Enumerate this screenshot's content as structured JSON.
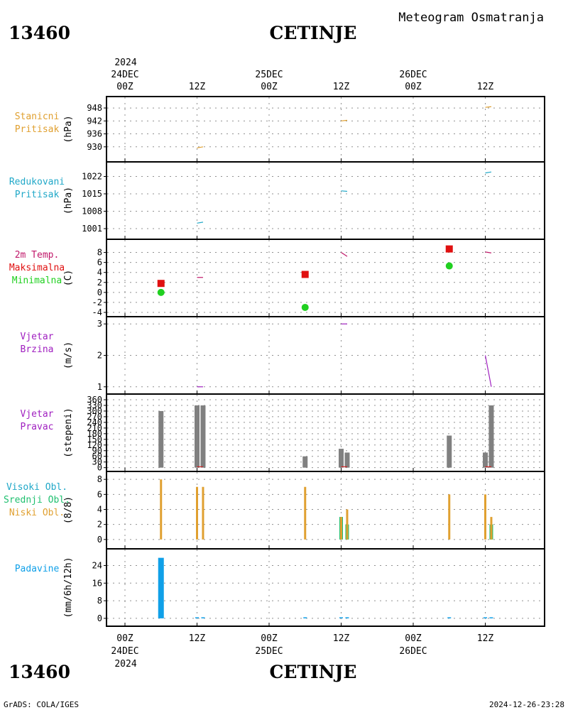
{
  "header": {
    "station_id": "13460",
    "station_name": "CETINJE",
    "title": "Meteogram Osmatranja"
  },
  "footer": {
    "credit": "GrADS: COLA/IGES",
    "timestamp": "2024-12-26-23:28"
  },
  "axis_top": {
    "year": "2024",
    "ticks": [
      {
        "t": 0,
        "lines": [
          "24DEC",
          "00Z"
        ]
      },
      {
        "t": 12,
        "lines": [
          "",
          "12Z"
        ]
      },
      {
        "t": 24,
        "lines": [
          "25DEC",
          "00Z"
        ]
      },
      {
        "t": 36,
        "lines": [
          "",
          "12Z"
        ]
      },
      {
        "t": 48,
        "lines": [
          "26DEC",
          "00Z"
        ]
      },
      {
        "t": 60,
        "lines": [
          "",
          "12Z"
        ]
      }
    ]
  },
  "axis_bottom": {
    "year": "2024",
    "ticks": [
      {
        "t": 0,
        "lines": [
          "00Z",
          "24DEC"
        ]
      },
      {
        "t": 12,
        "lines": [
          "12Z",
          ""
        ]
      },
      {
        "t": 24,
        "lines": [
          "00Z",
          "25DEC"
        ]
      },
      {
        "t": 36,
        "lines": [
          "12Z",
          ""
        ]
      },
      {
        "t": 48,
        "lines": [
          "00Z",
          "26DEC"
        ]
      },
      {
        "t": 60,
        "lines": [
          "12Z",
          ""
        ]
      }
    ]
  },
  "colors": {
    "station_pressure": "#e0a030",
    "reduced_pressure": "#20a8c8",
    "temp": "#c0186a",
    "temp_max": "#e01010",
    "temp_min": "#20d020",
    "wind": "#a020c0",
    "wind_dir_bar": "#808080",
    "high_cloud": "#20a8c8",
    "mid_cloud": "#20c070",
    "low_cloud": "#e0a030",
    "precip": "#10a0e8",
    "grid": "#909090",
    "red_line": "#e01010"
  },
  "chart_data": [
    {
      "id": "station_pressure",
      "type": "line",
      "labels": [
        "Stanicni",
        "Pritisak"
      ],
      "unit": "(hPa)",
      "yticks": [
        "930",
        "936",
        "942",
        "948"
      ],
      "ylim": [
        925,
        950
      ],
      "color": "station_pressure",
      "segments": [
        {
          "x": [
            12,
            13
          ],
          "y": [
            929.5,
            930
          ]
        },
        {
          "x": [
            36,
            37
          ],
          "y": [
            942,
            942.3
          ]
        },
        {
          "x": [
            60,
            61
          ],
          "y": [
            948.3,
            948.6
          ]
        }
      ]
    },
    {
      "id": "reduced_pressure",
      "type": "line",
      "labels": [
        "Redukovani",
        "Pritisak"
      ],
      "unit": "(hPa)",
      "yticks": [
        "1001",
        "1008",
        "1015",
        "1022"
      ],
      "ylim": [
        999,
        1025
      ],
      "color": "reduced_pressure",
      "segments": [
        {
          "x": [
            12,
            13
          ],
          "y": [
            1003.2,
            1003.6
          ]
        },
        {
          "x": [
            36,
            37
          ],
          "y": [
            1016.2,
            1016
          ]
        },
        {
          "x": [
            60,
            61
          ],
          "y": [
            1023.4,
            1023.8
          ]
        }
      ]
    },
    {
      "id": "temperature",
      "type": "line+scatter",
      "labels": [
        "2m Temp.",
        "Maksimalna",
        "Minimalna"
      ],
      "label_colors": [
        "temp",
        "temp_max",
        "temp_min"
      ],
      "unit": "(C)",
      "yticks": [
        "-4",
        "-2",
        "0",
        "2",
        "4",
        "6",
        "8"
      ],
      "ylim": [
        -4,
        9.5
      ],
      "color": "temp",
      "segments": [
        {
          "x": [
            12,
            13
          ],
          "y": [
            3,
            3
          ]
        },
        {
          "x": [
            36,
            37
          ],
          "y": [
            8,
            7.2
          ]
        },
        {
          "x": [
            60,
            61
          ],
          "y": [
            8.1,
            7.9
          ]
        }
      ],
      "max": {
        "x": [
          6,
          30,
          54
        ],
        "y": [
          1.8,
          3.6,
          8.7
        ]
      },
      "min": {
        "x": [
          6,
          30,
          54
        ],
        "y": [
          0,
          -3,
          5.3
        ]
      }
    },
    {
      "id": "wind_speed",
      "type": "line",
      "labels": [
        "Vjetar",
        "Brzina"
      ],
      "unit": "(m/s)",
      "yticks": [
        "1",
        "2",
        "3"
      ],
      "ylim": [
        0.95,
        3.05
      ],
      "color": "wind",
      "segments": [
        {
          "x": [
            12,
            13
          ],
          "y": [
            1,
            1
          ]
        },
        {
          "x": [
            36,
            37
          ],
          "y": [
            3,
            3
          ]
        },
        {
          "x": [
            60,
            61
          ],
          "y": [
            2,
            1
          ]
        }
      ]
    },
    {
      "id": "wind_direction",
      "type": "bar",
      "labels": [
        "Vjetar",
        "Pravac"
      ],
      "unit": "(stepeni)",
      "yticks": [
        "0",
        "30",
        "60",
        "90",
        "120",
        "150",
        "180",
        "210",
        "240",
        "270",
        "300",
        "330",
        "360"
      ],
      "ylim": [
        -5,
        360
      ],
      "bars": {
        "x": [
          6,
          12,
          13,
          30,
          36,
          37,
          54,
          60,
          61
        ],
        "values": [
          300,
          330,
          330,
          60,
          100,
          80,
          170,
          80,
          330
        ]
      }
    },
    {
      "id": "clouds",
      "type": "bar",
      "labels": [
        "Visoki Obl.",
        "Srednji Obl.",
        "Niski Obl."
      ],
      "label_colors": [
        "high_cloud",
        "mid_cloud",
        "low_cloud"
      ],
      "unit": "(8/8)",
      "yticks": [
        "0",
        "2",
        "4",
        "6",
        "8"
      ],
      "ylim": [
        -0.3,
        8.3
      ],
      "series": [
        {
          "key": "mid",
          "color": "mid_cloud",
          "x": [
            36,
            37,
            61
          ],
          "values": [
            3,
            2,
            2
          ]
        },
        {
          "key": "low",
          "color": "low_cloud",
          "x": [
            6,
            12,
            13,
            30,
            36,
            37,
            54,
            60,
            61
          ],
          "values": [
            8,
            7,
            7,
            7,
            3,
            4,
            6,
            6,
            3
          ]
        }
      ]
    },
    {
      "id": "precipitation",
      "type": "bar",
      "labels": [
        "Padavine"
      ],
      "label_colors": [
        "precip"
      ],
      "unit": "(mm/6h/12h)",
      "yticks": [
        "0",
        "8",
        "16",
        "24"
      ],
      "ylim": [
        -1,
        29
      ],
      "bars": {
        "x": [
          6,
          12,
          13,
          30,
          36,
          37,
          54,
          60,
          61
        ],
        "values": [
          27.5,
          0.3,
          0.3,
          0.2,
          0.3,
          0.3,
          0.2,
          0.3,
          0.3
        ]
      }
    }
  ]
}
